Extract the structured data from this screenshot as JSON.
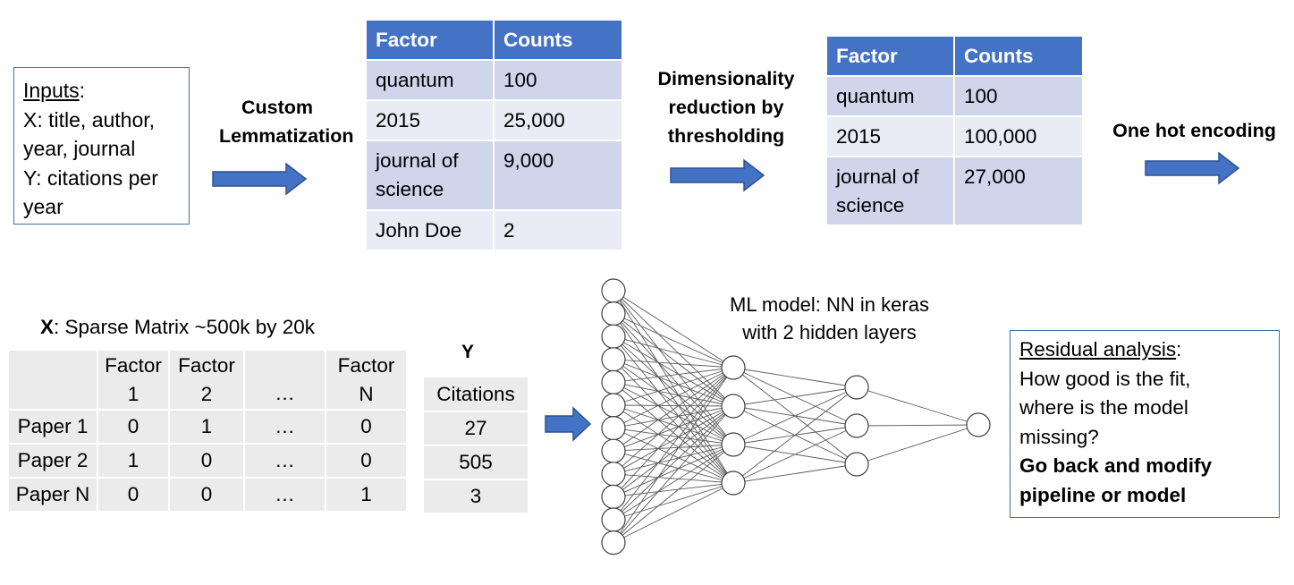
{
  "inputs_box": {
    "heading": "Inputs",
    "heading_suffix": ":",
    "lines": [
      "X: title, author,",
      "year, journal",
      "Y: citations per",
      "year"
    ]
  },
  "steps": {
    "lemmatization": [
      "Custom",
      "Lemmatization"
    ],
    "dimensionality": [
      "Dimensionality",
      "reduction by",
      "thresholding"
    ],
    "one_hot": "One hot encoding"
  },
  "table_before": {
    "headers": [
      "Factor",
      "Counts"
    ],
    "rows": [
      {
        "factor": "quantum",
        "count": "100"
      },
      {
        "factor": "2015",
        "count": "25,000"
      },
      {
        "factor": "journal of science",
        "count": "9,000"
      },
      {
        "factor": "John Doe",
        "count": "2"
      }
    ]
  },
  "table_after": {
    "headers": [
      "Factor",
      "Counts"
    ],
    "rows": [
      {
        "factor": "quantum",
        "count": "100"
      },
      {
        "factor": "2015",
        "count": "100,000"
      },
      {
        "factor": "journal of science",
        "count": "27,000"
      }
    ]
  },
  "matrix": {
    "title_bold": "X",
    "title_rest": ": Sparse Matrix ~500k by 20k",
    "col_headers": [
      {
        "line1": "Factor",
        "line2": "1"
      },
      {
        "line1": "Factor",
        "line2": "2"
      },
      {
        "line1": "",
        "line2": "…"
      },
      {
        "line1": "Factor",
        "line2": "N"
      }
    ],
    "rows": [
      {
        "label": "Paper 1",
        "cells": [
          "0",
          "1",
          "…",
          "0"
        ]
      },
      {
        "label": "Paper 2",
        "cells": [
          "1",
          "0",
          "…",
          "0"
        ]
      },
      {
        "label": "Paper N",
        "cells": [
          "0",
          "0",
          "…",
          "1"
        ]
      }
    ]
  },
  "y_table": {
    "title": "Y",
    "header": "Citations",
    "values": [
      "27",
      "505",
      "3"
    ]
  },
  "nn": {
    "caption": [
      "ML model: NN in keras",
      "with 2 hidden layers"
    ],
    "layer_sizes": [
      12,
      4,
      3,
      1
    ]
  },
  "residual_box": {
    "heading": "Residual analysis",
    "heading_suffix": ":",
    "lines": [
      "How good is the fit,",
      "where is the model",
      "missing?"
    ],
    "bold_lines": [
      "Go back and modify",
      "pipeline or model"
    ]
  },
  "colors": {
    "accent_blue": "#4472c4",
    "arrow_fill": "#4472c4",
    "arrow_stroke": "#2f528f",
    "box_border": "#41719c",
    "row_dark": "#cfd5ea",
    "row_light": "#e9ebf5",
    "matrix_cell": "#ebebeb"
  }
}
